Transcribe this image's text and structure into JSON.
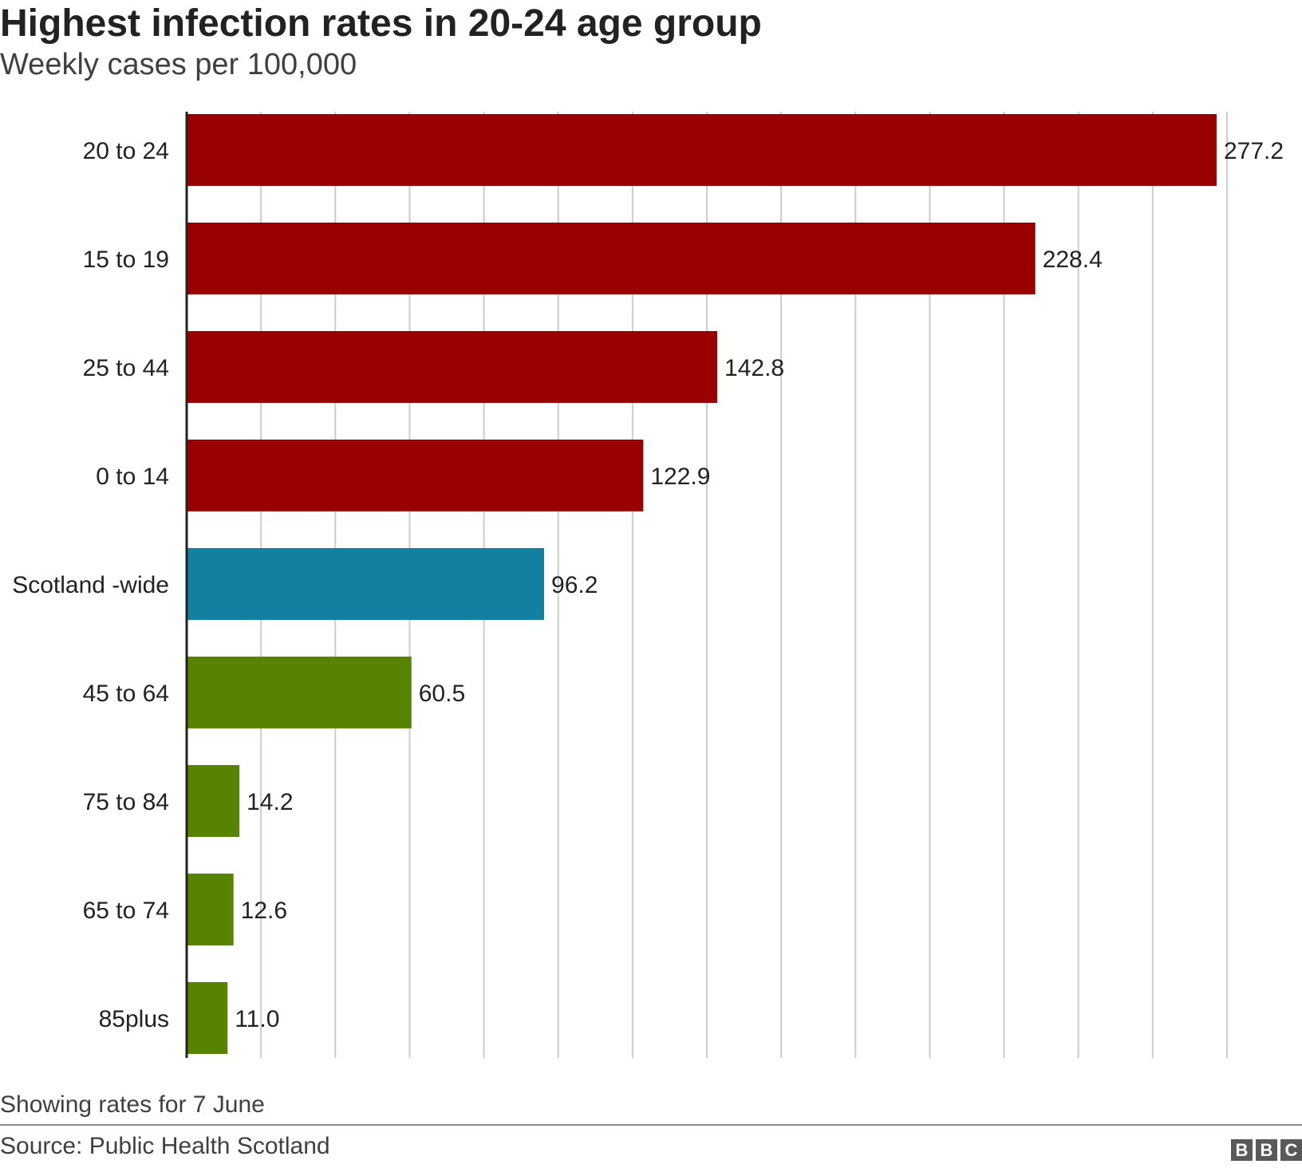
{
  "header": {
    "title": "Highest infection rates in 20-24 age group",
    "subtitle": "Weekly cases per 100,000"
  },
  "footer": {
    "note": "Showing rates for 7 June",
    "source": "Source: Public Health Scotland",
    "logo": [
      "B",
      "B",
      "C"
    ]
  },
  "colors": {
    "above_average": "#990000",
    "scotland": "#1380a1",
    "below_average": "#588300",
    "grid": "#cccccc",
    "axis": "#222222"
  },
  "chart_data": {
    "type": "bar",
    "orientation": "horizontal",
    "title": "Highest infection rates in 20-24 age group",
    "subtitle": "Weekly cases per 100,000",
    "xlim": [
      0,
      280
    ],
    "grid": true,
    "categories": [
      "20 to 24",
      "15 to 19",
      "25 to 44",
      "0 to 14",
      "Scotland -wide",
      "45 to 64",
      "75 to 84",
      "65 to 74",
      "85plus"
    ],
    "values": [
      277.2,
      228.4,
      142.8,
      122.9,
      96.2,
      60.5,
      14.2,
      12.6,
      11.0
    ],
    "value_labels": [
      "277.2",
      "228.4",
      "142.8",
      "122.9",
      "96.2",
      "60.5",
      "14.2",
      "12.6",
      "11.0"
    ],
    "bar_groups": [
      "above_average",
      "above_average",
      "above_average",
      "above_average",
      "scotland",
      "below_average",
      "below_average",
      "below_average",
      "below_average"
    ]
  }
}
